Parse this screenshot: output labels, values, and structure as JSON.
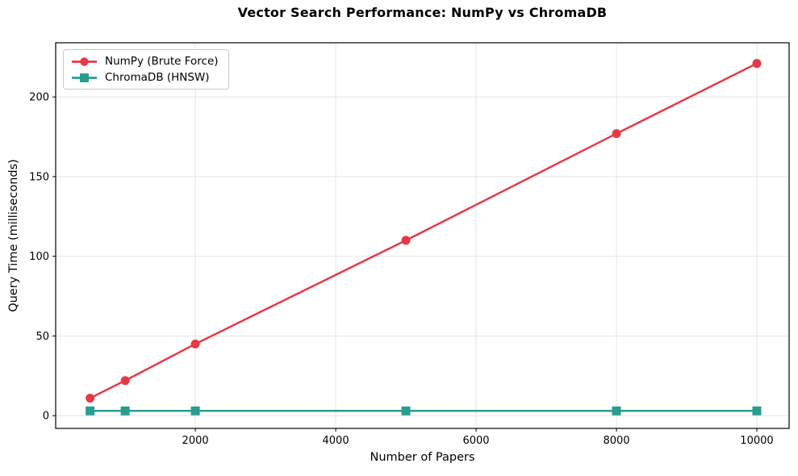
{
  "chart_data": {
    "type": "line",
    "title": "Vector Search Performance: NumPy vs ChromaDB",
    "xlabel": "Number of Papers",
    "ylabel": "Query Time (milliseconds)",
    "x": [
      500,
      1000,
      2000,
      5000,
      8000,
      10000
    ],
    "series": [
      {
        "name": "NumPy (Brute Force)",
        "marker": "circle",
        "color": "#e63946",
        "values": [
          11,
          22,
          45,
          110,
          177,
          221
        ]
      },
      {
        "name": "ChromaDB (HNSW)",
        "marker": "square",
        "color": "#2a9d8f",
        "values": [
          3,
          3,
          3,
          3,
          3,
          3
        ]
      }
    ],
    "xticks": [
      2000,
      4000,
      6000,
      8000,
      10000
    ],
    "xtick_labels": [
      "2000",
      "4000",
      "6000",
      "8000",
      "10000"
    ],
    "yticks": [
      0,
      50,
      100,
      150,
      200
    ],
    "ytick_labels": [
      "0",
      "50",
      "100",
      "150",
      "200"
    ],
    "xlim": [
      10,
      10460
    ],
    "ylim": [
      -8,
      234
    ],
    "grid": true,
    "legend_position": "upper-left",
    "colors": {
      "grid": "#e4e4e4",
      "spine": "#000000",
      "background": "#ffffff"
    }
  }
}
